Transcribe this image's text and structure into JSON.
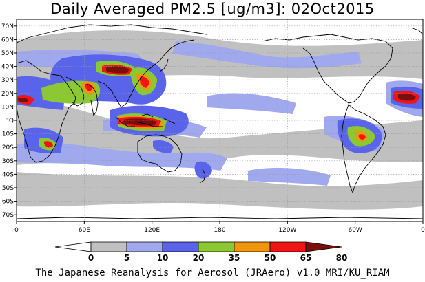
{
  "title": "Daily Averaged PM2.5 [ug/m3]: 02Oct2015",
  "footer": "The Japanese Reanalysis for Aerosol (JRAero) v1.0 MRI/KU_RIAM",
  "colors": {
    "band_5_10": "#c0c0c0",
    "band_10_20": "#a0a8ee",
    "band_20_35": "#5a64ea",
    "band_35_50": "#8cc832",
    "band_50_65": "#f0960a",
    "band_65_80": "#f01414",
    "band_80_plus": "#7a0e0e",
    "land_outline": "#000000",
    "grid": "#9a9a9a"
  },
  "chart_data": {
    "type": "heatmap",
    "title": "Daily Averaged PM2.5 [ug/m3]: 02Oct2015",
    "lon_range": [
      0,
      360
    ],
    "lat_range": [
      -75,
      75
    ],
    "lat_ticks": [
      {
        "value": 70,
        "label": "70N"
      },
      {
        "value": 60,
        "label": "60N"
      },
      {
        "value": 50,
        "label": "50N"
      },
      {
        "value": 40,
        "label": "40N"
      },
      {
        "value": 30,
        "label": "30N"
      },
      {
        "value": 20,
        "label": "20N"
      },
      {
        "value": 10,
        "label": "10N"
      },
      {
        "value": 0,
        "label": "EQ"
      },
      {
        "value": -10,
        "label": "10S"
      },
      {
        "value": -20,
        "label": "20S"
      },
      {
        "value": -30,
        "label": "30S"
      },
      {
        "value": -40,
        "label": "40S"
      },
      {
        "value": -50,
        "label": "50S"
      },
      {
        "value": -60,
        "label": "60S"
      },
      {
        "value": -70,
        "label": "70S"
      }
    ],
    "lon_ticks": [
      {
        "value": 0,
        "label": "0"
      },
      {
        "value": 60,
        "label": "60E"
      },
      {
        "value": 120,
        "label": "120E"
      },
      {
        "value": 180,
        "label": "180"
      },
      {
        "value": 240,
        "label": "120W"
      },
      {
        "value": 300,
        "label": "60W"
      },
      {
        "value": 360,
        "label": "0"
      }
    ],
    "grid": true,
    "colorbar": {
      "boundaries": [
        0,
        5,
        10,
        20,
        35,
        50,
        65,
        80
      ],
      "labels": [
        "0",
        "5",
        "10",
        "20",
        "35",
        "50",
        "65",
        "80"
      ],
      "colors": [
        "#ffffff",
        "#c0c0c0",
        "#a0a8ee",
        "#5a64ea",
        "#8cc832",
        "#f0960a",
        "#f01414",
        "#7a0e0e"
      ],
      "placement": "bottom"
    },
    "highlights": [
      {
        "lon": 102,
        "lat": 41,
        "value": 85
      },
      {
        "lon": 113,
        "lat": 30,
        "value": 70
      },
      {
        "lon": 107,
        "lat": -2,
        "value": 90
      },
      {
        "lon": 2,
        "lat": 14,
        "value": 82
      },
      {
        "lon": 345,
        "lat": 15,
        "value": 82
      },
      {
        "lon": 312,
        "lat": -14,
        "value": 55
      },
      {
        "lon": 75,
        "lat": 28,
        "value": 55
      },
      {
        "lon": 20,
        "lat": -12,
        "value": 50
      }
    ]
  }
}
